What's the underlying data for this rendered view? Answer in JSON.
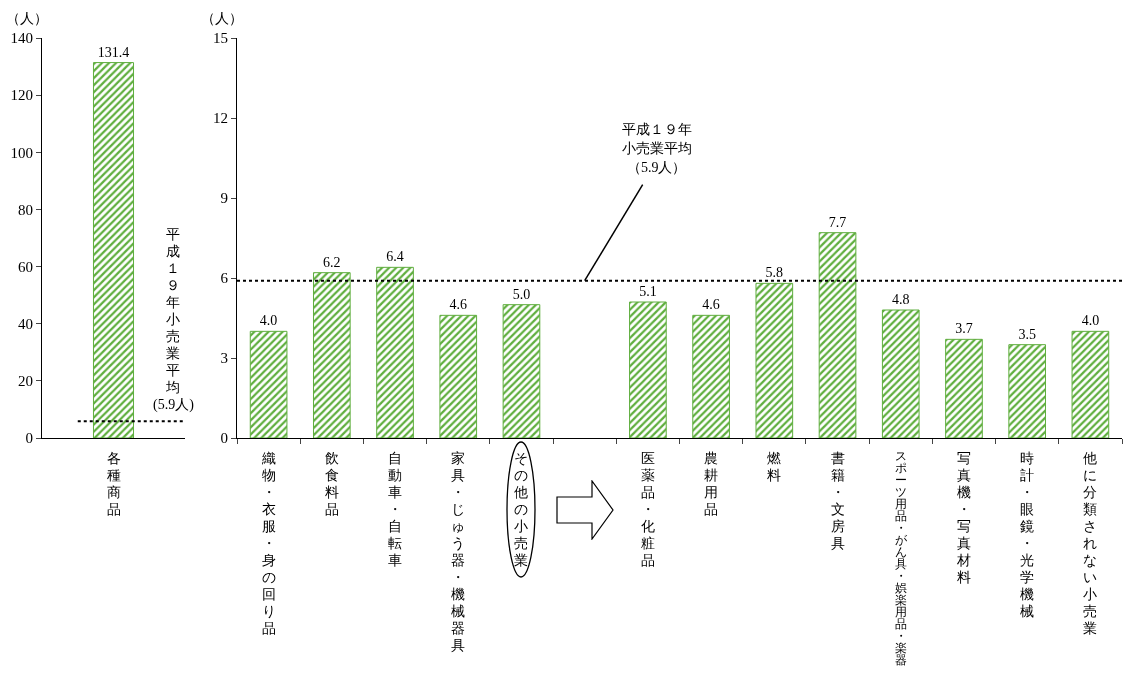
{
  "chart_data": [
    {
      "type": "bar",
      "ylabel": "（人）",
      "categories": [
        "各種商品"
      ],
      "values": [
        131.4
      ],
      "value_labels": [
        "131.4"
      ],
      "color": "#5fae3e",
      "ylim": [
        0,
        140
      ],
      "yticks": [
        0,
        20,
        40,
        60,
        80,
        100,
        120,
        140
      ],
      "ref_lines": [
        {
          "axis": "y",
          "value": 5.9,
          "label": "平成１９年小売業平均(5.9人)",
          "line_style": "dotted"
        }
      ]
    },
    {
      "type": "bar",
      "ylabel": "（人）",
      "categories": [
        "織物・衣服・身の回り品",
        "飲食料品",
        "自動車・自転車",
        "家具・じゅう器・機械器具",
        "その他の小売業",
        null,
        "医薬品・化粧品",
        "農耕用品",
        "燃料",
        "書籍・文房具",
        "スポーツ用品・がん具・娯楽用品・楽器",
        "写真機・写真材料",
        "時計・眼鏡・光学機械",
        "他に分類されない小売業"
      ],
      "values": [
        4.0,
        6.2,
        6.4,
        4.6,
        5.0,
        null,
        5.1,
        4.6,
        5.8,
        7.7,
        4.8,
        3.7,
        3.5,
        4.0
      ],
      "value_labels": [
        "4.0",
        "6.2",
        "6.4",
        "4.6",
        "5.0",
        null,
        "5.1",
        "4.6",
        "5.8",
        "7.7",
        "4.8",
        "3.7",
        "3.5",
        "4.0"
      ],
      "color": "#5fae3e",
      "ylim": [
        0,
        15
      ],
      "yticks": [
        0,
        3,
        6,
        9,
        12,
        15
      ],
      "ref_lines": [
        {
          "axis": "y",
          "value": 5.9,
          "label": "平成１９年小売業平均（5.9人）",
          "line_style": "dotted"
        }
      ]
    }
  ]
}
